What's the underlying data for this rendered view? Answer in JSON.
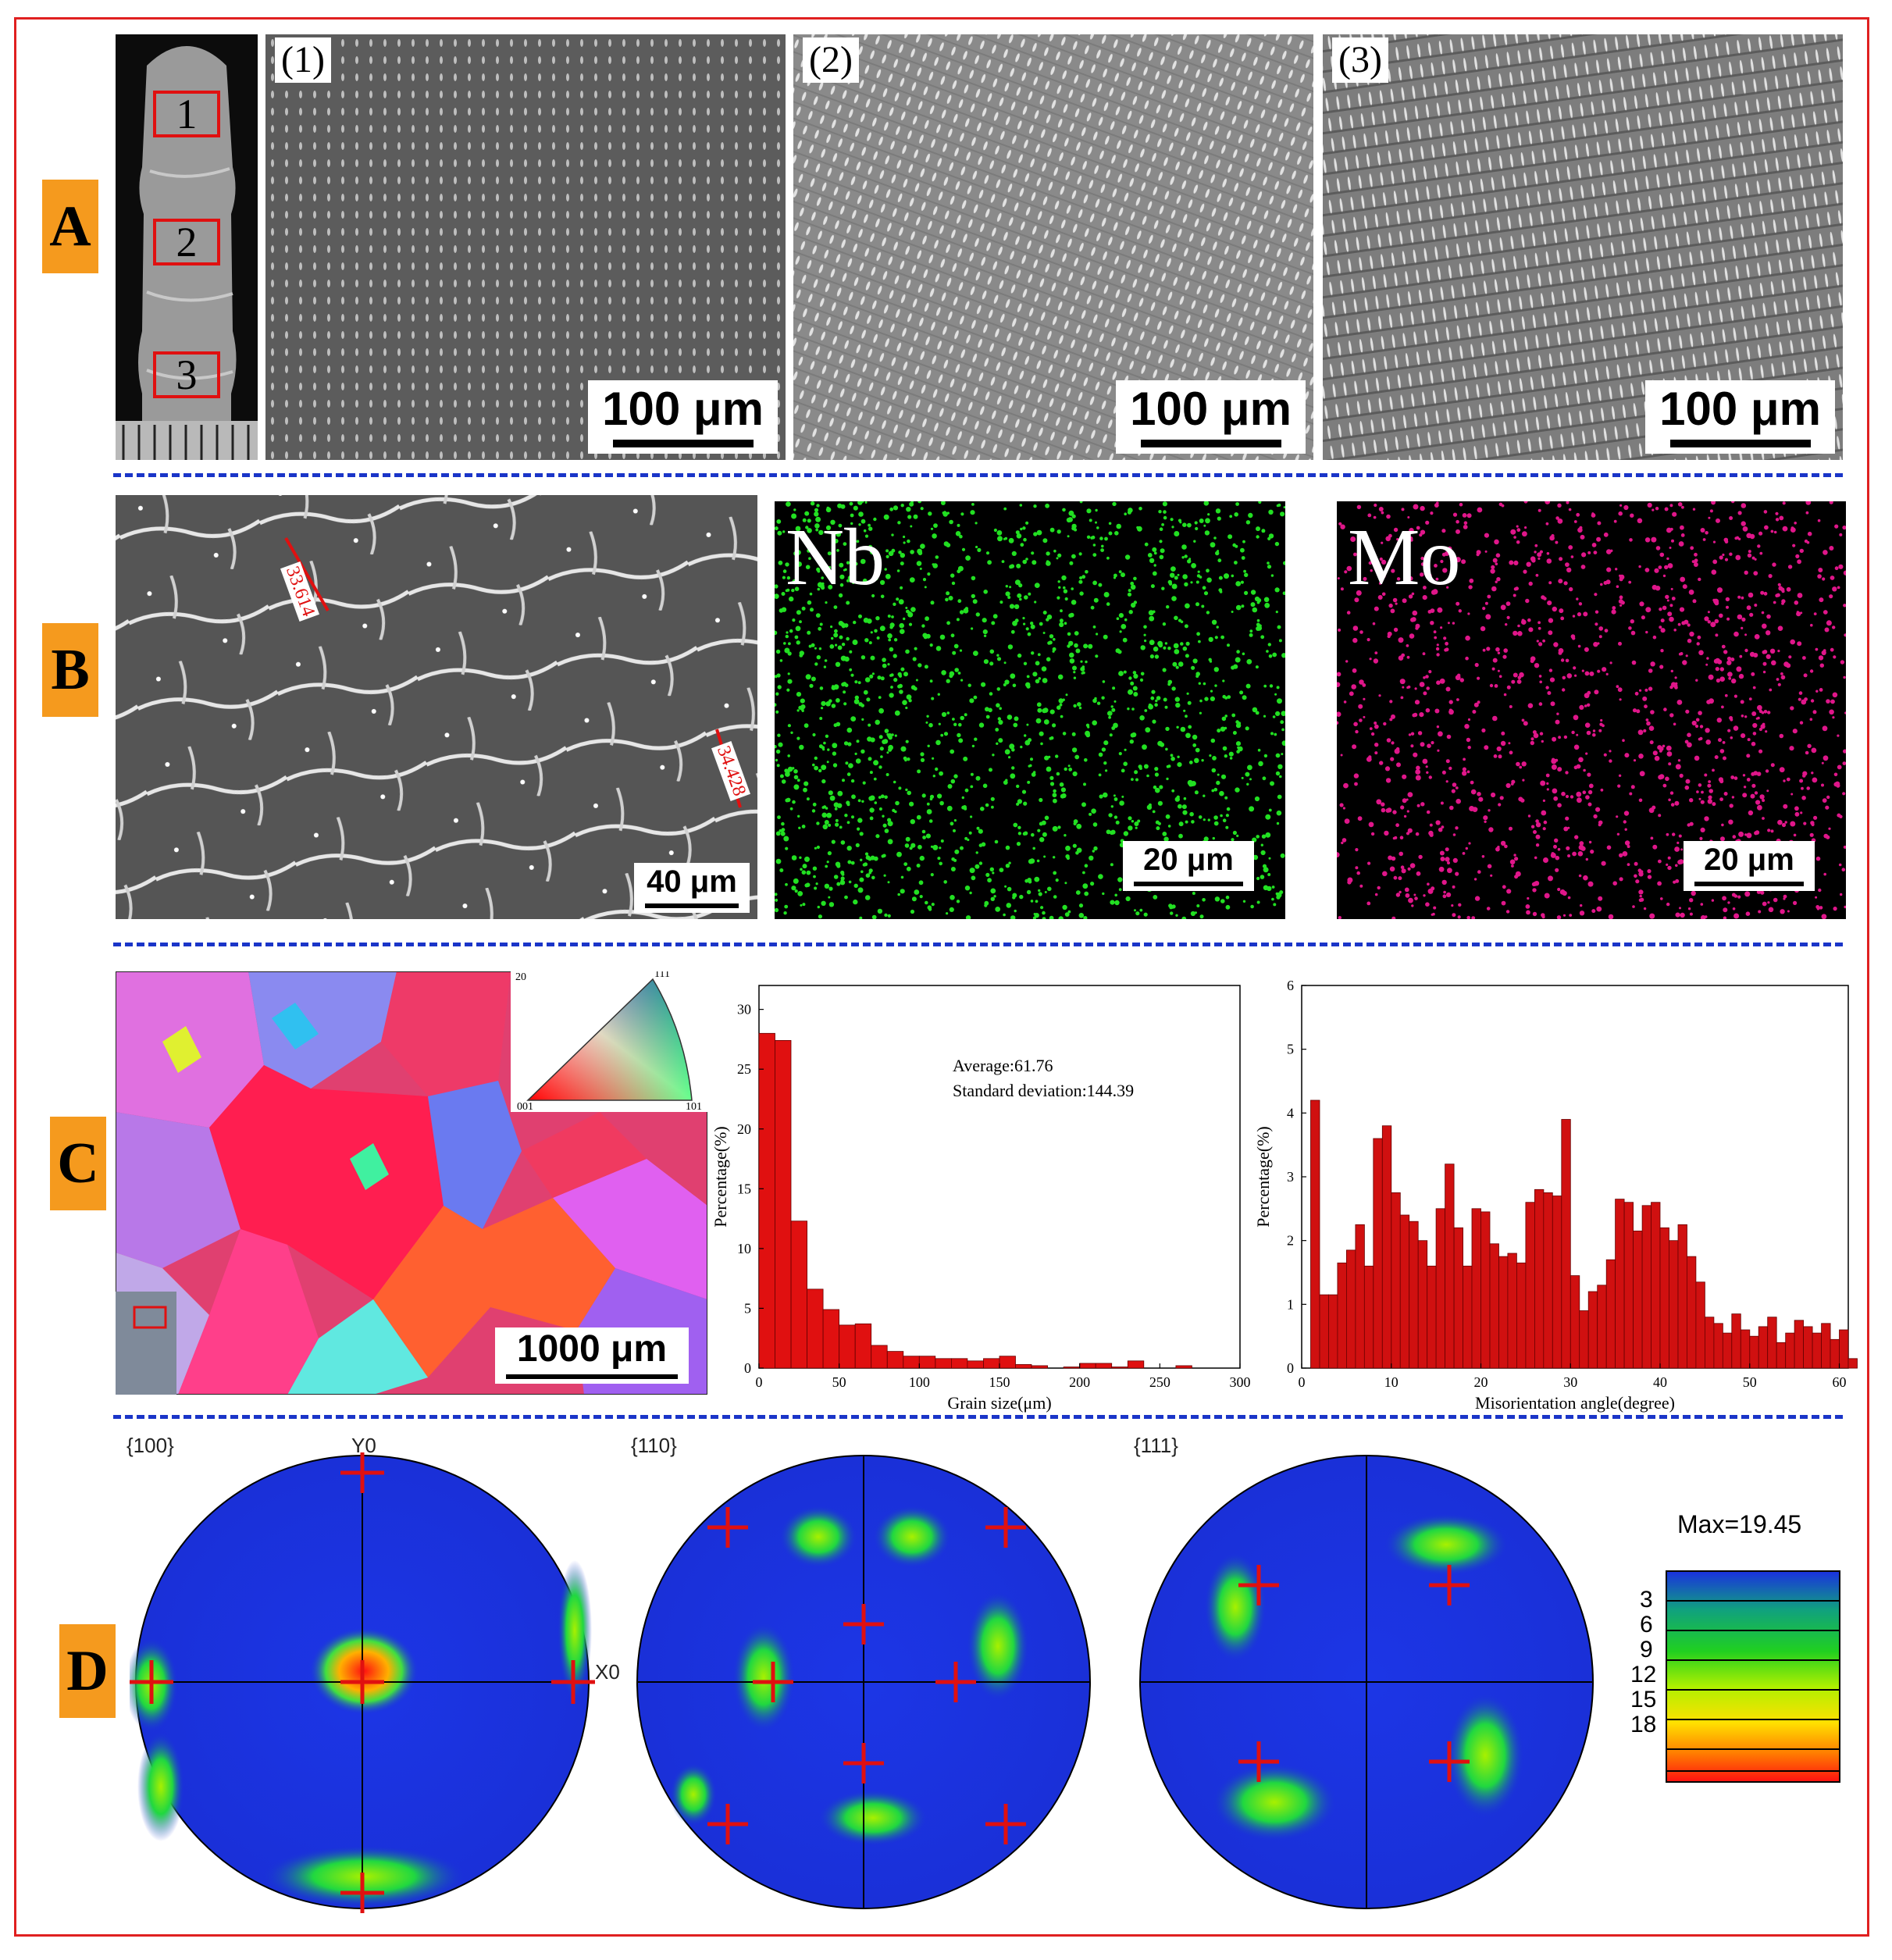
{
  "panels": {
    "a": "A",
    "b": "B",
    "c": "C",
    "d": "D"
  },
  "row_a": {
    "sample_markers": [
      "1",
      "2",
      "3"
    ],
    "micrographs": [
      {
        "label": "(1)",
        "scale": "100 μm"
      },
      {
        "label": "(2)",
        "scale": "100 μm"
      },
      {
        "label": "(3)",
        "scale": "100 μm"
      }
    ]
  },
  "row_b": {
    "sem": {
      "scale": "40 μm",
      "measure_1": "33.614",
      "measure_2": "34.428"
    },
    "maps": [
      {
        "element": "Nb",
        "scale": "20 μm",
        "color": "#22e022"
      },
      {
        "element": "Mo",
        "scale": "20 μm",
        "color": "#e0168a"
      }
    ]
  },
  "row_c": {
    "ebsd": {
      "scale": "1000 μm",
      "ipf_labels": [
        "111",
        "001",
        "101"
      ],
      "corner_label": "20"
    },
    "grain_text": {
      "average": "Average:61.76",
      "std": "Standard deviation:144.39"
    }
  },
  "chart_data": [
    {
      "type": "bar",
      "xlabel": "Grain size(μm)",
      "ylabel": "Percentage(%)",
      "xlim": [
        0,
        300
      ],
      "ylim": [
        0,
        32
      ],
      "xticks": [
        0,
        50,
        100,
        150,
        200,
        250,
        300
      ],
      "yticks": [
        0,
        5,
        10,
        15,
        20,
        25,
        30
      ],
      "bin_width": 10,
      "x": [
        0,
        10,
        20,
        30,
        40,
        50,
        60,
        70,
        80,
        90,
        100,
        110,
        120,
        130,
        140,
        150,
        160,
        170,
        180,
        190,
        200,
        210,
        220,
        230,
        240,
        250,
        260
      ],
      "values": [
        28.0,
        27.4,
        12.3,
        6.6,
        4.9,
        3.6,
        3.7,
        1.9,
        1.4,
        1.0,
        1.0,
        0.8,
        0.8,
        0.6,
        0.8,
        1.0,
        0.3,
        0.2,
        0,
        0.1,
        0.4,
        0.4,
        0.1,
        0.6,
        0,
        0,
        0.2
      ],
      "color": "#e01010"
    },
    {
      "type": "bar",
      "xlabel": "Misorientation angle(degree)",
      "ylabel": "Percentage(%)",
      "xlim": [
        0,
        61
      ],
      "ylim": [
        0,
        6
      ],
      "xticks": [
        0,
        10,
        20,
        30,
        40,
        50,
        60
      ],
      "yticks": [
        0,
        1,
        2,
        3,
        4,
        5,
        6
      ],
      "bin_width": 1,
      "x": [
        1,
        2,
        3,
        4,
        5,
        6,
        7,
        8,
        9,
        10,
        11,
        12,
        13,
        14,
        15,
        16,
        17,
        18,
        19,
        20,
        21,
        22,
        23,
        24,
        25,
        26,
        27,
        28,
        29,
        30,
        31,
        32,
        33,
        34,
        35,
        36,
        37,
        38,
        39,
        40,
        41,
        42,
        43,
        44,
        45,
        46,
        47,
        48,
        49,
        50,
        51,
        52,
        53,
        54,
        55,
        56,
        57,
        58,
        59,
        60,
        61
      ],
      "values": [
        4.2,
        1.15,
        1.15,
        1.65,
        1.85,
        2.25,
        1.6,
        3.6,
        3.8,
        2.75,
        2.4,
        2.3,
        2.0,
        1.6,
        2.5,
        3.2,
        2.2,
        1.6,
        2.5,
        2.45,
        1.95,
        1.75,
        1.8,
        1.65,
        2.6,
        2.8,
        2.75,
        2.7,
        3.9,
        1.45,
        0.9,
        1.2,
        1.3,
        1.7,
        2.65,
        2.6,
        2.15,
        2.55,
        2.6,
        2.2,
        2.0,
        2.25,
        1.75,
        1.35,
        0.8,
        0.7,
        0.55,
        0.85,
        0.6,
        0.5,
        0.65,
        0.8,
        0.4,
        0.55,
        0.75,
        0.65,
        0.55,
        0.7,
        0.45,
        0.6,
        0.15
      ],
      "color": "#d01010"
    }
  ],
  "row_d": {
    "figures": [
      {
        "title": "{100}",
        "axis_y": "Y0",
        "axis_x": "X0"
      },
      {
        "title": "{110}"
      },
      {
        "title": "{111}"
      }
    ],
    "legend": {
      "max": "Max=19.45",
      "levels": [
        "3",
        "6",
        "9",
        "12",
        "15",
        "18"
      ]
    }
  }
}
